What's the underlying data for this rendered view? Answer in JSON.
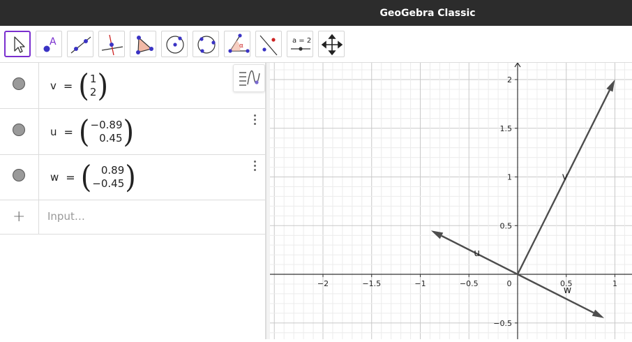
{
  "window": {
    "title": "GeoGebra Classic"
  },
  "toolbar": {
    "tools": [
      {
        "name": "move-tool",
        "label": "",
        "active": true
      },
      {
        "name": "point-tool",
        "label": "A"
      },
      {
        "name": "line-tool",
        "label": ""
      },
      {
        "name": "perpendicular-line-tool",
        "label": ""
      },
      {
        "name": "polygon-tool",
        "label": ""
      },
      {
        "name": "circle-center-point-tool",
        "label": ""
      },
      {
        "name": "circle-three-points-tool",
        "label": ""
      },
      {
        "name": "angle-tool",
        "label": "α"
      },
      {
        "name": "reflect-tool",
        "label": ""
      },
      {
        "name": "slider-tool",
        "label": "a = 2"
      },
      {
        "name": "move-graphics-view-tool",
        "label": ""
      }
    ]
  },
  "algebra": {
    "items": [
      {
        "name": "v",
        "eq": "=",
        "x": "1",
        "y": "2"
      },
      {
        "name": "u",
        "eq": "=",
        "x": "−0.89",
        "y": "0.45"
      },
      {
        "name": "w",
        "eq": "=",
        "x": "0.89",
        "y": "−0.45"
      }
    ],
    "input_placeholder": "Input…",
    "plus": "+"
  },
  "graphics": {
    "x_ticks": [
      "−2",
      "−1.5",
      "−1",
      "−0.5",
      "0",
      "0.5",
      "1"
    ],
    "y_ticks": [
      "2",
      "1.5",
      "1",
      "0.5",
      "−0.5"
    ],
    "vector_labels": {
      "v": "v",
      "u": "u",
      "w": "w"
    },
    "vectors": [
      {
        "name": "v",
        "x": 1,
        "y": 2
      },
      {
        "name": "u",
        "x": -0.89,
        "y": 0.45
      },
      {
        "name": "w",
        "x": 0.89,
        "y": -0.45
      }
    ],
    "vector_color": "#4d4d4d",
    "grid": true
  },
  "colors": {
    "accent": "#7a2fcf",
    "point": "#3a33c4"
  }
}
